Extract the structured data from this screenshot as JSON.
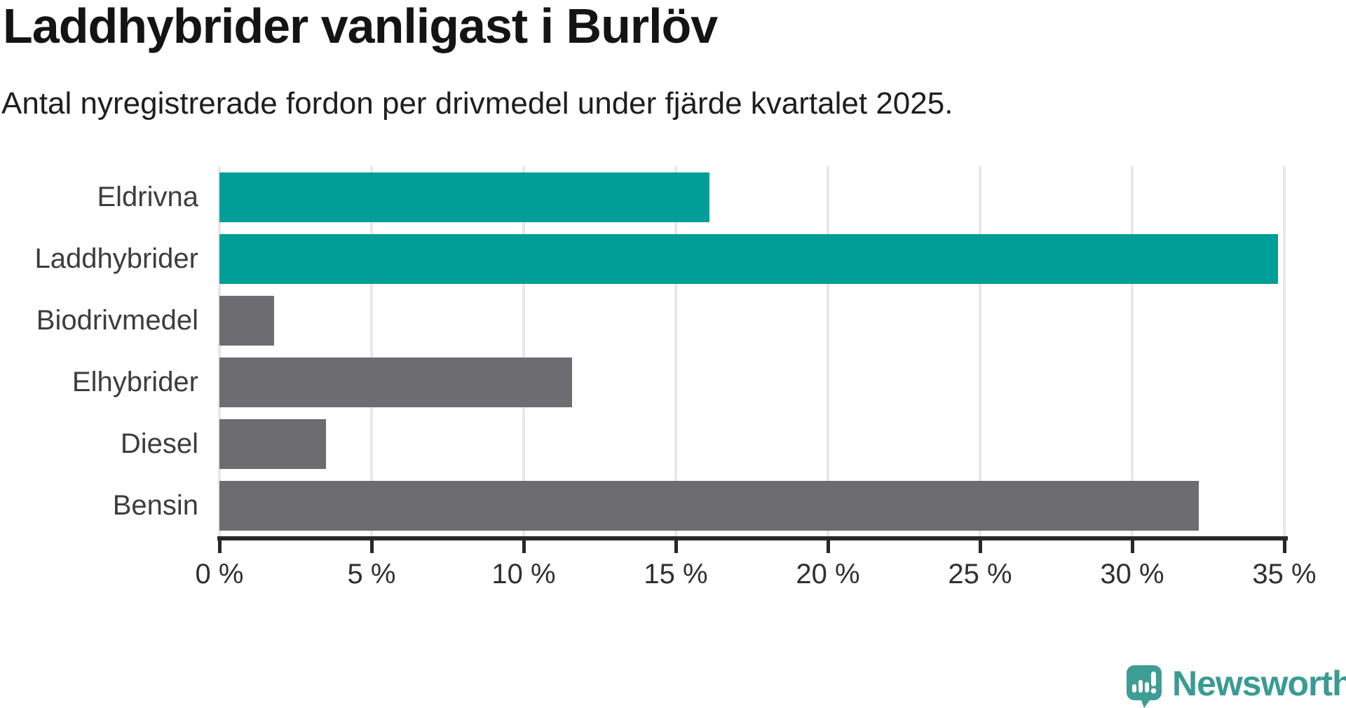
{
  "header": {
    "title": "Laddhybrider vanligast i Burlöv",
    "subtitle": "Antal nyregistrerade fordon per drivmedel under fjärde kvartalet 2025."
  },
  "chart_data": {
    "type": "bar",
    "orientation": "horizontal",
    "title": "Laddhybrider vanligast i Burlöv",
    "subtitle": "Antal nyregistrerade fordon per drivmedel under fjärde kvartalet 2025.",
    "categories": [
      "Eldrivna",
      "Laddhybrider",
      "Biodrivmedel",
      "Elhybrider",
      "Diesel",
      "Bensin"
    ],
    "values": [
      16.1,
      34.8,
      1.8,
      11.6,
      3.5,
      32.2
    ],
    "unit": "%",
    "xlabel": "",
    "ylabel": "",
    "xlim": [
      0,
      35
    ],
    "x_ticks": [
      0,
      5,
      10,
      15,
      20,
      25,
      30,
      35
    ],
    "x_tick_labels": [
      "0 %",
      "5 %",
      "10 %",
      "15 %",
      "20 %",
      "25 %",
      "30 %",
      "35 %"
    ],
    "grid": "vertical-only",
    "legend": "none",
    "bar_colors": [
      "#009e96",
      "#009e96",
      "#6c6c71",
      "#6c6c71",
      "#6c6c71",
      "#6c6c71"
    ]
  },
  "colors": {
    "highlight_teal": "#009e96",
    "neutral_gray": "#6c6c71",
    "gridline": "#e8e8e8",
    "axis": "#282828",
    "label_text": "#3d3d3d",
    "brand_teal": "#3a9b93"
  },
  "footer": {
    "brand": "Newsworthy",
    "logo_icon": "speech-bubble-bar-chart-icon"
  }
}
